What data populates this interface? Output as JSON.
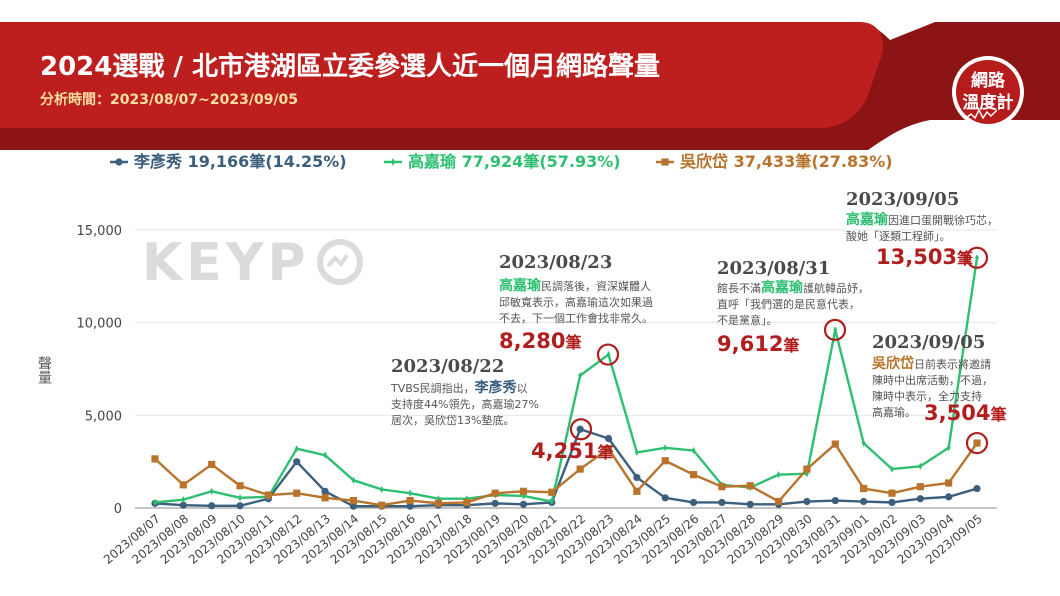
{
  "header": {
    "title": "2024選戰 / 北市港湖區立委參選人近一個月網路聲量",
    "subtitle": "分析時間：2023/08/07~2023/09/05",
    "badge_line1": "網路",
    "badge_line2": "溫度計"
  },
  "watermark": "KEYP",
  "colors": {
    "header_bg": "#b71c1c",
    "header_dark": "#7a0f0f",
    "li": "#3b5f7d",
    "gao": "#2fbf71",
    "wu": "#b8742c",
    "highlight": "#b01e1e"
  },
  "chart_data": {
    "type": "line",
    "ylabel": "聲量",
    "ylim": [
      0,
      15000
    ],
    "yticks": [
      0,
      5000,
      10000,
      15000
    ],
    "ytick_labels": [
      "0",
      "5,000",
      "10,000",
      "15,000"
    ],
    "categories": [
      "2023/08/07",
      "2023/08/08",
      "2023/08/09",
      "2023/08/10",
      "2023/08/11",
      "2023/08/12",
      "2023/08/13",
      "2023/08/14",
      "2023/08/15",
      "2023/08/16",
      "2023/08/17",
      "2023/08/18",
      "2023/08/19",
      "2023/08/20",
      "2023/08/21",
      "2023/08/22",
      "2023/08/23",
      "2023/08/24",
      "2023/08/25",
      "2023/08/26",
      "2023/08/27",
      "2023/08/28",
      "2023/08/29",
      "2023/08/30",
      "2023/08/31",
      "2023/09/01",
      "2023/09/02",
      "2023/09/03",
      "2023/09/04",
      "2023/09/05"
    ],
    "legend": [
      {
        "name": "李彥秀",
        "stat": "19,166筆(14.25%)"
      },
      {
        "name": "高嘉瑜",
        "stat": "77,924筆(57.93%)"
      },
      {
        "name": "吳欣岱",
        "stat": "37,433筆(27.83%)"
      }
    ],
    "series": [
      {
        "name": "李彥秀",
        "key": "li",
        "values": [
          250,
          150,
          120,
          120,
          500,
          2500,
          900,
          100,
          100,
          100,
          150,
          150,
          250,
          200,
          300,
          4251,
          3750,
          1650,
          550,
          300,
          300,
          200,
          200,
          350,
          400,
          350,
          300,
          500,
          600,
          1050
        ]
      },
      {
        "name": "高嘉瑜",
        "key": "gao",
        "values": [
          300,
          450,
          900,
          550,
          600,
          3200,
          2850,
          1500,
          1000,
          800,
          500,
          500,
          700,
          650,
          350,
          7150,
          8280,
          3000,
          3250,
          3100,
          1250,
          1100,
          1800,
          1850,
          9612,
          3500,
          2100,
          2250,
          3250,
          13503
        ]
      },
      {
        "name": "吳欣岱",
        "key": "wu",
        "values": [
          2650,
          1250,
          2350,
          1200,
          700,
          800,
          550,
          400,
          150,
          400,
          250,
          300,
          800,
          900,
          850,
          2100,
          3200,
          900,
          2550,
          1800,
          1150,
          1200,
          350,
          2100,
          3450,
          1050,
          800,
          1150,
          1350,
          3504
        ]
      }
    ],
    "annotations": [
      {
        "key": "a0822",
        "date": "2023/08/22",
        "lines": [
          [
            {
              "t": "TVBS民調指出，"
            },
            {
              "t": "李彥秀",
              "c": "li",
              "b": true
            },
            {
              "t": "以"
            }
          ],
          [
            {
              "t": "支持度44%領先，高嘉瑜27%"
            }
          ],
          [
            {
              "t": "居次，吳欣岱13%墊底。"
            }
          ]
        ],
        "value": "4,251",
        "unit": "筆"
      },
      {
        "key": "a0823",
        "date": "2023/08/23",
        "lines": [
          [
            {
              "t": "高嘉瑜",
              "c": "gao",
              "b": true
            },
            {
              "t": "民調落後，資深媒體人"
            }
          ],
          [
            {
              "t": "邱敏寬表示，高嘉瑜這次如果過"
            }
          ],
          [
            {
              "t": "不去，下一個工作會找非常久。"
            }
          ]
        ],
        "value": "8,280",
        "unit": "筆"
      },
      {
        "key": "a0831",
        "date": "2023/08/31",
        "lines": [
          [
            {
              "t": "館長不滿"
            },
            {
              "t": "高嘉瑜",
              "c": "gao",
              "b": true
            },
            {
              "t": "護航韓品妤，"
            }
          ],
          [
            {
              "t": "直呼「我們選的是民意代表，"
            }
          ],
          [
            {
              "t": "不是黨意」。"
            }
          ]
        ],
        "value": "9,612",
        "unit": "筆"
      },
      {
        "key": "a0905g",
        "date": "2023/09/05",
        "lines": [
          [
            {
              "t": "高嘉瑜",
              "c": "gao",
              "b": true
            },
            {
              "t": "因進口蛋開戰徐巧芯，"
            }
          ],
          [
            {
              "t": "酸她「逐類工程師」。"
            }
          ]
        ],
        "value": "13,503",
        "unit": "筆"
      },
      {
        "key": "a0905w",
        "date": "2023/09/05",
        "lines": [
          [
            {
              "t": "吳欣岱",
              "c": "wu",
              "b": true
            },
            {
              "t": "日前表示將邀請"
            }
          ],
          [
            {
              "t": "陳時中出席活動，不過，"
            }
          ],
          [
            {
              "t": "陳時中表示，全力支持"
            }
          ],
          [
            {
              "t": "高嘉瑜。"
            }
          ]
        ],
        "value": "3,504",
        "unit": "筆"
      }
    ]
  }
}
